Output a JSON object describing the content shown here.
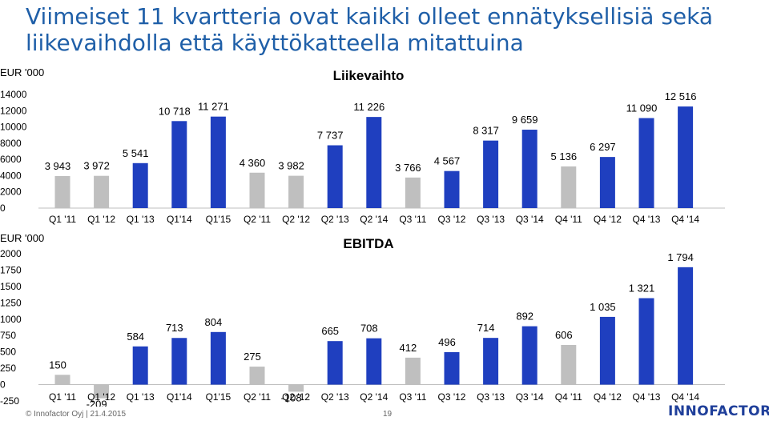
{
  "slide": {
    "title": "Viimeiset 11 kvartteria ovat kaikki olleet ennätyksellisiä sekä liikevaihdolla että käyttökatteella mitattuina",
    "footer": "© Innofactor Oyj | 21.4.2015",
    "page_number": "19",
    "logo_text": "INNOFACTOR"
  },
  "colors": {
    "bar_blue": "#1f3fbf",
    "bar_gray": "#bfbfbf",
    "title_blue": "#1f5fa8"
  },
  "chart_data": [
    {
      "type": "bar",
      "title": "Liikevaihto",
      "ylabel": "EUR '000",
      "ylim": [
        0,
        14000
      ],
      "yticks": [
        "0",
        "2000",
        "4000",
        "6000",
        "8000",
        "10000",
        "12000",
        "14000"
      ],
      "grid": false,
      "legend": "none",
      "categories": [
        "Q1 '11",
        "Q1 '12",
        "Q1 '13",
        "Q1'14",
        "Q1'15",
        "Q2 '11",
        "Q2 '12",
        "Q2 '13",
        "Q2 '14",
        "Q3 '11",
        "Q3 '12",
        "Q3 '13",
        "Q3 '14",
        "Q4 '11",
        "Q4 '12",
        "Q4 '13",
        "Q4 '14"
      ],
      "values": [
        3943,
        3972,
        5541,
        10718,
        11271,
        4360,
        3982,
        7737,
        11226,
        3766,
        4567,
        8317,
        9659,
        5136,
        6297,
        11090,
        12516
      ],
      "value_labels": [
        "3 943",
        "3 972",
        "5 541",
        "10 718",
        "11 271",
        "4 360",
        "3 982",
        "7 737",
        "11 226",
        "3 766",
        "4 567",
        "8 317",
        "9 659",
        "5 136",
        "6 297",
        "11 090",
        "12 516"
      ],
      "bar_colors": [
        "gray",
        "gray",
        "blue",
        "blue",
        "blue",
        "gray",
        "gray",
        "blue",
        "blue",
        "gray",
        "blue",
        "blue",
        "blue",
        "gray",
        "blue",
        "blue",
        "blue"
      ]
    },
    {
      "type": "bar",
      "title": "EBITDA",
      "ylabel": "EUR '000",
      "ylim": [
        -250,
        2000
      ],
      "yticks": [
        "-250",
        "0",
        "250",
        "500",
        "750",
        "1000",
        "1250",
        "1500",
        "1750",
        "2000"
      ],
      "grid": false,
      "legend": "none",
      "categories": [
        "Q1 '11",
        "Q1 '12",
        "Q1 '13",
        "Q1'14",
        "Q1'15",
        "Q2 '11",
        "Q2 '12",
        "Q2 '13",
        "Q2 '14",
        "Q3 '11",
        "Q3 '12",
        "Q3 '13",
        "Q3 '14",
        "Q4 '11",
        "Q4 '12",
        "Q4 '13",
        "Q4 '14"
      ],
      "values": [
        150,
        -209,
        584,
        713,
        804,
        275,
        -108,
        665,
        708,
        412,
        496,
        714,
        892,
        606,
        1035,
        1321,
        1794
      ],
      "value_labels": [
        "150",
        "-209",
        "584",
        "713",
        "804",
        "275",
        "-108",
        "665",
        "708",
        "412",
        "496",
        "714",
        "892",
        "606",
        "1 035",
        "1 321",
        "1 794"
      ],
      "bar_colors": [
        "gray",
        "gray",
        "blue",
        "blue",
        "blue",
        "gray",
        "gray",
        "blue",
        "blue",
        "gray",
        "blue",
        "blue",
        "blue",
        "gray",
        "blue",
        "blue",
        "blue"
      ]
    }
  ]
}
